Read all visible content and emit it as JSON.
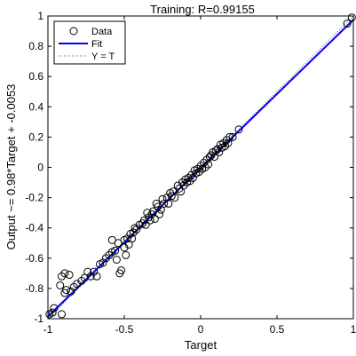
{
  "chart_data": {
    "type": "scatter",
    "title": "Training: R=0.99155",
    "xlabel": "Target",
    "ylabel": "Output ~= 0.98*Target + -0.0053",
    "xlim": [
      -1,
      1
    ],
    "ylim": [
      -1,
      1
    ],
    "x_ticks": [
      -1,
      -0.5,
      0,
      0.5,
      1
    ],
    "x_tick_labels": [
      "-1",
      "-0.5",
      "0",
      "0.5",
      "1"
    ],
    "y_ticks": [
      -1,
      -0.8,
      -0.6,
      -0.4,
      -0.2,
      0,
      0.2,
      0.4,
      0.6,
      0.8,
      1
    ],
    "y_tick_labels": [
      "-1",
      "-0.8",
      "-0.6",
      "-0.4",
      "-0.2",
      "0",
      "0.2",
      "0.4",
      "0.6",
      "0.8",
      "1"
    ],
    "grid": false,
    "legend_position": "top-left",
    "legend": [
      "Data",
      "Fit",
      "Y = T"
    ],
    "fit": {
      "slope": 0.98,
      "intercept": -0.0053,
      "color": "#0000ff"
    },
    "identity_line": {
      "style": "dotted",
      "color": "#555555"
    },
    "marker_color": "#000000",
    "series": [
      {
        "name": "Data",
        "points": [
          [
            -0.99,
            -0.97
          ],
          [
            -0.97,
            -0.96
          ],
          [
            -0.96,
            -0.93
          ],
          [
            -0.91,
            -0.97
          ],
          [
            -0.92,
            -0.78
          ],
          [
            -0.89,
            -0.83
          ],
          [
            -0.88,
            -0.81
          ],
          [
            -0.91,
            -0.72
          ],
          [
            -0.89,
            -0.7
          ],
          [
            -0.86,
            -0.71
          ],
          [
            -0.85,
            -0.82
          ],
          [
            -0.83,
            -0.79
          ],
          [
            -0.81,
            -0.77
          ],
          [
            -0.78,
            -0.75
          ],
          [
            -0.76,
            -0.73
          ],
          [
            -0.74,
            -0.69
          ],
          [
            -0.72,
            -0.72
          ],
          [
            -0.7,
            -0.69
          ],
          [
            -0.68,
            -0.72
          ],
          [
            -0.66,
            -0.64
          ],
          [
            -0.64,
            -0.63
          ],
          [
            -0.62,
            -0.6
          ],
          [
            -0.6,
            -0.58
          ],
          [
            -0.58,
            -0.56
          ],
          [
            -0.58,
            -0.48
          ],
          [
            -0.56,
            -0.55
          ],
          [
            -0.55,
            -0.61
          ],
          [
            -0.54,
            -0.5
          ],
          [
            -0.53,
            -0.7
          ],
          [
            -0.52,
            -0.68
          ],
          [
            -0.5,
            -0.53
          ],
          [
            -0.5,
            -0.48
          ],
          [
            -0.49,
            -0.58
          ],
          [
            -0.48,
            -0.47
          ],
          [
            -0.47,
            -0.51
          ],
          [
            -0.46,
            -0.44
          ],
          [
            -0.45,
            -0.47
          ],
          [
            -0.44,
            -0.43
          ],
          [
            -0.43,
            -0.4
          ],
          [
            -0.42,
            -0.41
          ],
          [
            -0.4,
            -0.38
          ],
          [
            -0.38,
            -0.37
          ],
          [
            -0.37,
            -0.35
          ],
          [
            -0.36,
            -0.38
          ],
          [
            -0.35,
            -0.3
          ],
          [
            -0.34,
            -0.33
          ],
          [
            -0.33,
            -0.35
          ],
          [
            -0.32,
            -0.31
          ],
          [
            -0.31,
            -0.29
          ],
          [
            -0.3,
            -0.34
          ],
          [
            -0.29,
            -0.24
          ],
          [
            -0.28,
            -0.26
          ],
          [
            -0.27,
            -0.31
          ],
          [
            -0.26,
            -0.28
          ],
          [
            -0.25,
            -0.21
          ],
          [
            -0.24,
            -0.24
          ],
          [
            -0.22,
            -0.2
          ],
          [
            -0.21,
            -0.24
          ],
          [
            -0.2,
            -0.17
          ],
          [
            -0.19,
            -0.19
          ],
          [
            -0.18,
            -0.16
          ],
          [
            -0.17,
            -0.2
          ],
          [
            -0.15,
            -0.12
          ],
          [
            -0.14,
            -0.14
          ],
          [
            -0.13,
            -0.16
          ],
          [
            -0.12,
            -0.1
          ],
          [
            -0.11,
            -0.12
          ],
          [
            -0.1,
            -0.08
          ],
          [
            -0.09,
            -0.1
          ],
          [
            -0.08,
            -0.07
          ],
          [
            -0.07,
            -0.09
          ],
          [
            -0.06,
            -0.05
          ],
          [
            -0.05,
            -0.07
          ],
          [
            -0.04,
            -0.02
          ],
          [
            -0.03,
            -0.04
          ],
          [
            -0.02,
            -0.01
          ],
          [
            -0.01,
            -0.03
          ],
          [
            0.0,
            0.01
          ],
          [
            0.01,
            -0.01
          ],
          [
            0.02,
            0.03
          ],
          [
            0.03,
            0.0
          ],
          [
            0.04,
            0.05
          ],
          [
            0.05,
            0.02
          ],
          [
            0.06,
            0.07
          ],
          [
            0.07,
            0.08
          ],
          [
            0.08,
            0.1
          ],
          [
            0.09,
            0.07
          ],
          [
            0.1,
            0.11
          ],
          [
            0.11,
            0.12
          ],
          [
            0.12,
            0.1
          ],
          [
            0.13,
            0.15
          ],
          [
            0.14,
            0.13
          ],
          [
            0.15,
            0.16
          ],
          [
            0.16,
            0.14
          ],
          [
            0.17,
            0.18
          ],
          [
            0.18,
            0.16
          ],
          [
            0.19,
            0.2
          ],
          [
            0.21,
            0.2
          ],
          [
            0.25,
            0.25
          ],
          [
            0.96,
            0.95
          ],
          [
            0.99,
            0.99
          ]
        ]
      }
    ]
  }
}
